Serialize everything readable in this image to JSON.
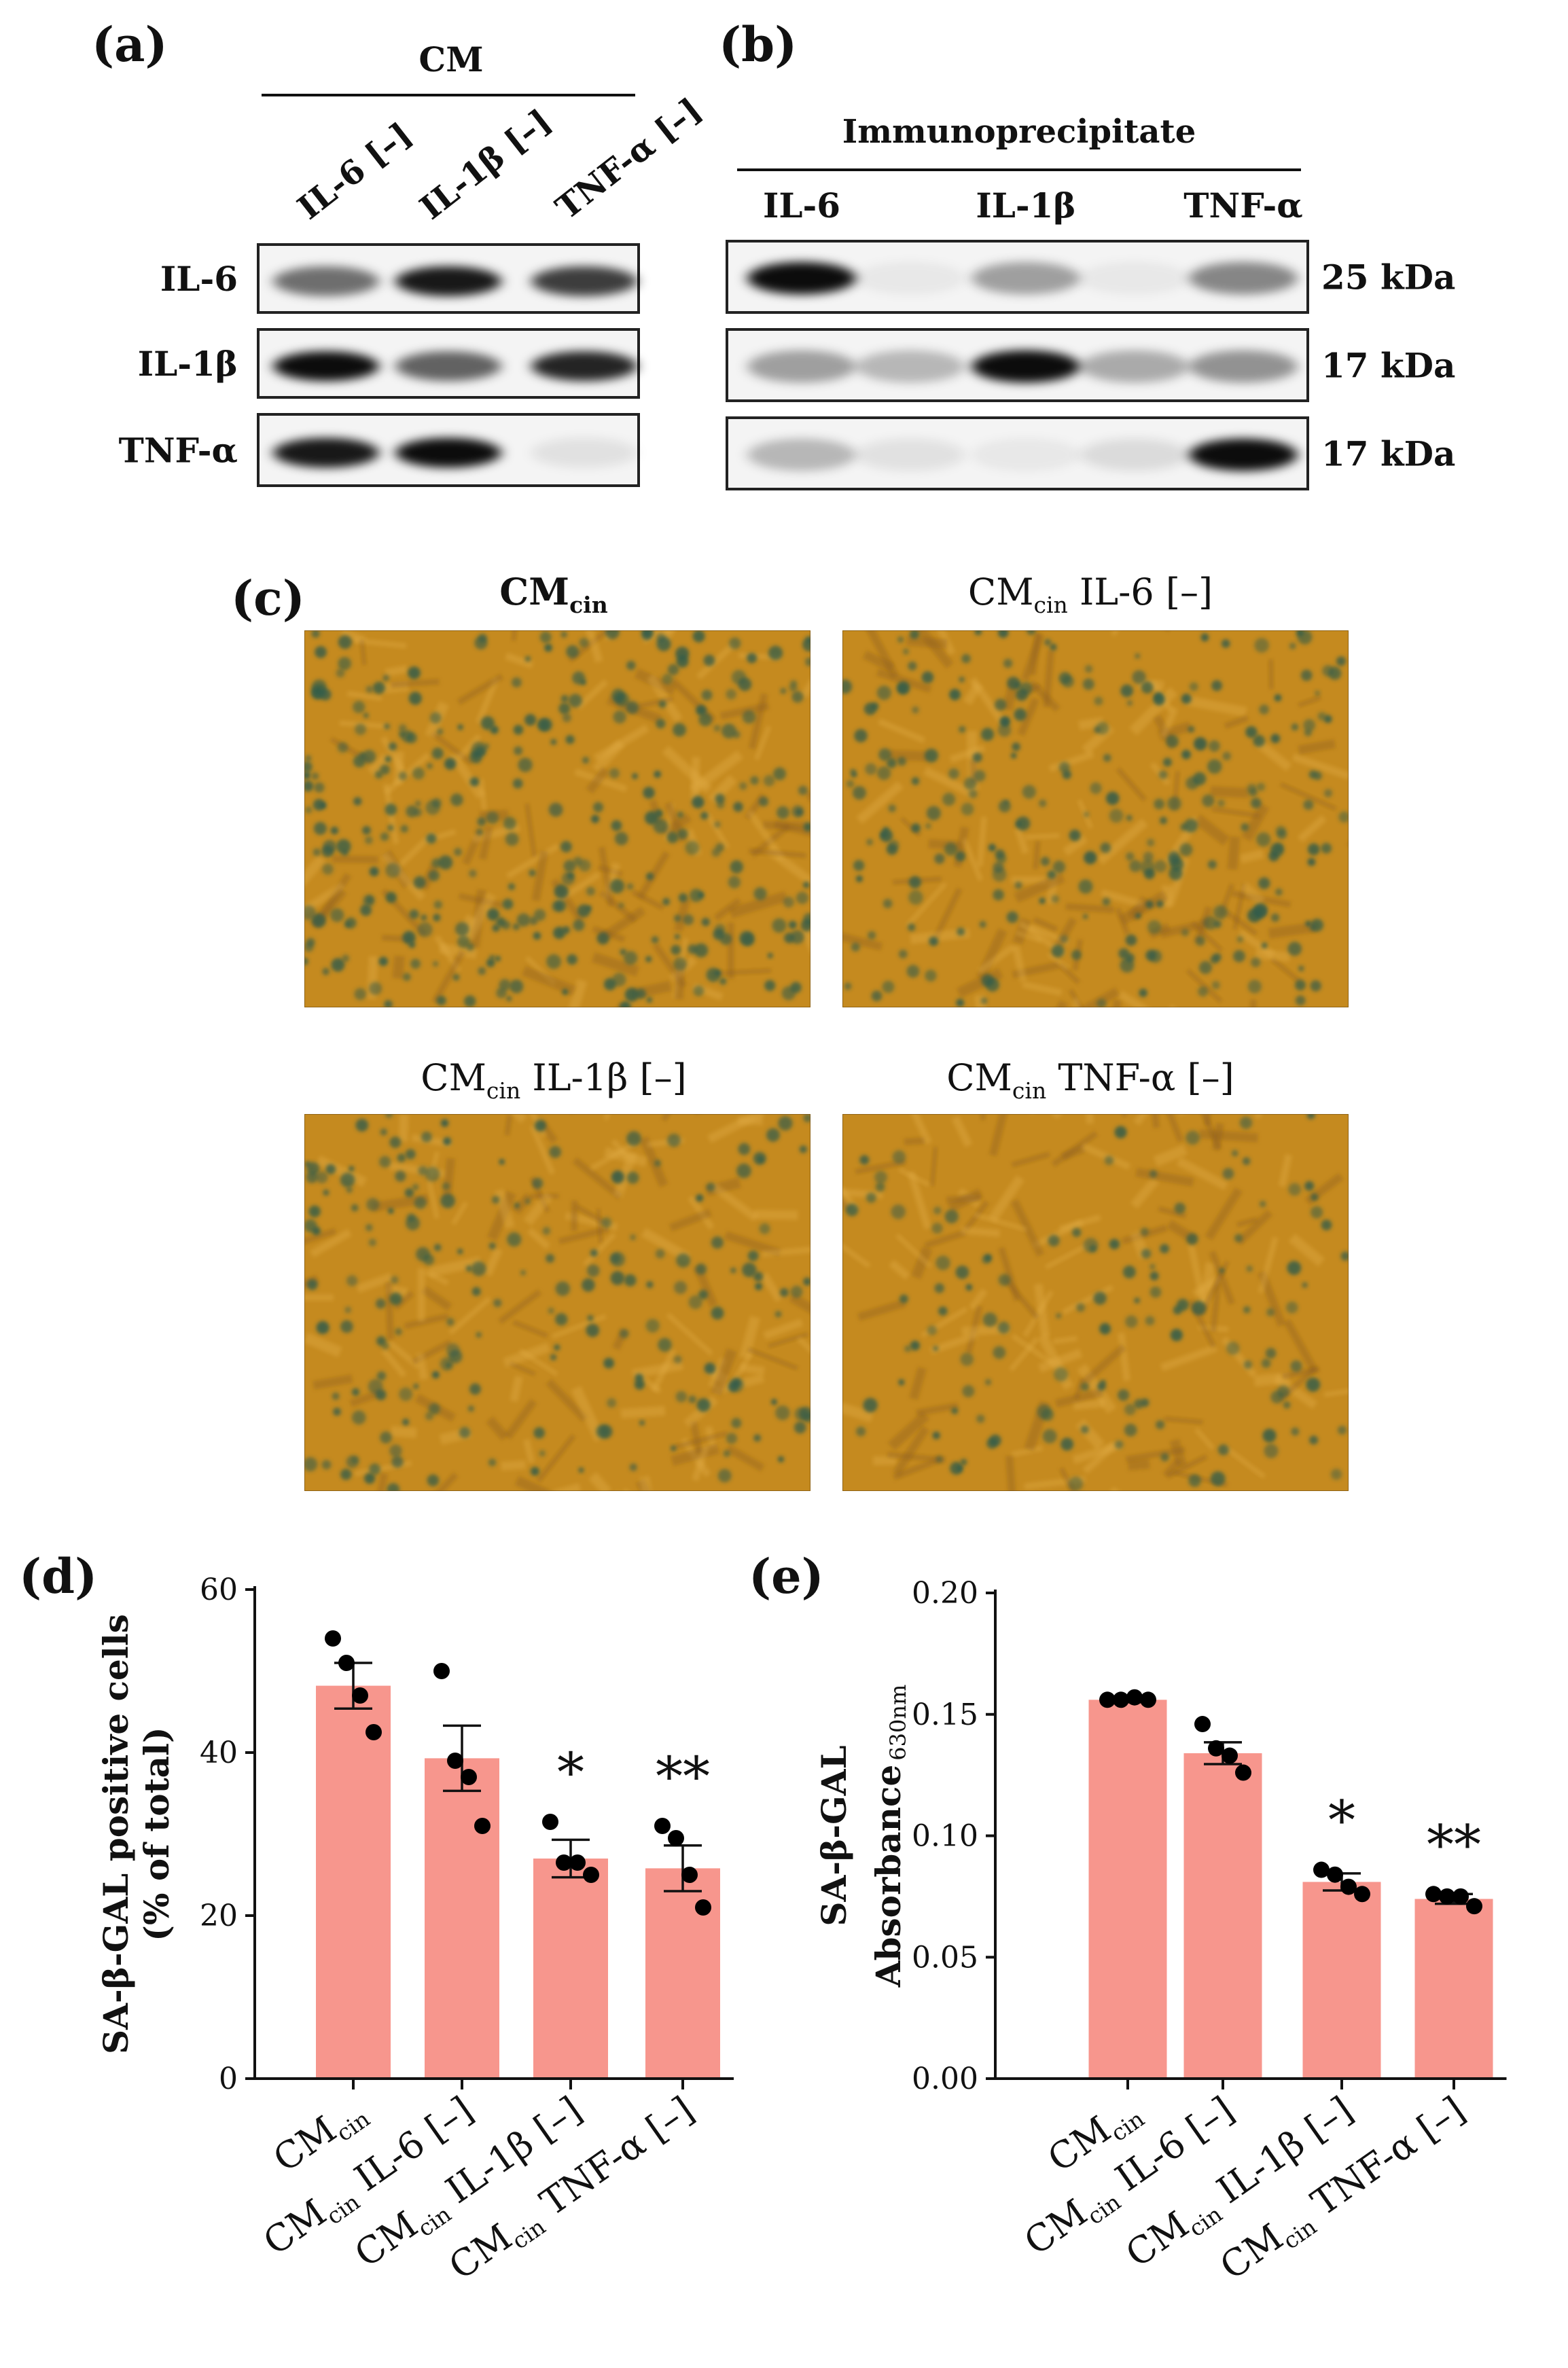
{
  "panel_letters": {
    "a": "(a)",
    "b": "(b)",
    "c": "(c)",
    "d": "(d)",
    "e": "(e)"
  },
  "panel_a": {
    "group_label": "CM",
    "lanes": [
      "IL-6 [–]",
      "IL-1β [–]",
      "TNF-α [–]"
    ],
    "blots": [
      {
        "label": "IL-6",
        "band_intensity": [
          0.55,
          0.9,
          0.75
        ]
      },
      {
        "label": "IL-1β",
        "band_intensity": [
          0.95,
          0.6,
          0.85
        ]
      },
      {
        "label": "TNF-α",
        "band_intensity": [
          0.9,
          0.95,
          0.08
        ]
      }
    ]
  },
  "panel_b": {
    "group_label": "Immunoprecipitate",
    "lanes": [
      "IL-6",
      "IL-1β",
      "TNF-α"
    ],
    "blots": [
      {
        "size": "25 kDa",
        "band_intensity": [
          0.95,
          0.05,
          0.35,
          0.05,
          0.45
        ]
      },
      {
        "size": "17 kDa",
        "band_intensity": [
          0.35,
          0.25,
          0.95,
          0.3,
          0.4
        ]
      },
      {
        "size": "17 kDa",
        "band_intensity": [
          0.25,
          0.08,
          0.05,
          0.1,
          0.95
        ]
      }
    ]
  },
  "panel_c": {
    "images": [
      {
        "main": "CM",
        "sub": "cin",
        "rest": ""
      },
      {
        "main": "CM",
        "sub": "cin",
        "rest": " IL-6 [–]"
      },
      {
        "main": "CM",
        "sub": "cin",
        "rest": " IL-1β [–]"
      },
      {
        "main": "CM",
        "sub": "cin",
        "rest": " TNF-α [–]"
      }
    ],
    "stain_density": [
      0.75,
      0.6,
      0.45,
      0.3
    ],
    "colors": {
      "background": "#c58a1f",
      "stain": "#2f5b4a"
    }
  },
  "category_labels": [
    {
      "main": "CM",
      "sub": "cin",
      "rest": ""
    },
    {
      "main": "CM",
      "sub": "cin",
      "rest": " IL-6 [–]"
    },
    {
      "main": "CM",
      "sub": "cin",
      "rest": " IL-1β [–]"
    },
    {
      "main": "CM",
      "sub": "cin",
      "rest": " TNF-α [–]"
    }
  ],
  "colors": {
    "bar": "#f7968d",
    "point": "#000000",
    "significance": "#e8261b"
  },
  "chart_data": [
    {
      "type": "bar",
      "panel": "d",
      "categories": [
        "CMcin",
        "CMcin IL-6 [–]",
        "CMcin IL-1β [–]",
        "CMcin TNF-α [–]"
      ],
      "values": [
        48.2,
        39.3,
        27.0,
        25.8
      ],
      "sem": [
        2.8,
        4.0,
        2.3,
        2.8
      ],
      "points": [
        [
          54,
          51,
          47,
          42.5
        ],
        [
          50,
          39,
          37,
          31
        ],
        [
          31.5,
          26.5,
          26.5,
          25
        ],
        [
          31,
          29.5,
          25,
          21
        ]
      ],
      "significance": [
        "",
        "",
        "*",
        "**"
      ],
      "ylabel_lines": [
        "SA-β-GAL positive cells",
        "(% of total)"
      ],
      "ylim": [
        0,
        60
      ],
      "yticks": [
        "0",
        "20",
        "40",
        "60"
      ],
      "ytick_values": [
        0,
        20,
        40,
        60
      ]
    },
    {
      "type": "bar",
      "panel": "e",
      "categories": [
        "CMcin",
        "CMcin IL-6 [–]",
        "CMcin IL-1β [–]",
        "CMcin TNF-α [–]"
      ],
      "values": [
        0.156,
        0.134,
        0.081,
        0.074
      ],
      "sem": [
        0.001,
        0.0045,
        0.0035,
        0.002
      ],
      "points": [
        [
          0.156,
          0.156,
          0.157,
          0.156
        ],
        [
          0.146,
          0.136,
          0.133,
          0.126
        ],
        [
          0.086,
          0.084,
          0.079,
          0.076
        ],
        [
          0.076,
          0.075,
          0.075,
          0.071
        ]
      ],
      "significance": [
        "",
        "",
        "*",
        "**"
      ],
      "ylabel_lines": [
        "SA-β-GAL",
        "Absorbance"
      ],
      "ylabel_sub": "630nm",
      "ylim": [
        0,
        0.2
      ],
      "yticks": [
        "0.00",
        "0.05",
        "0.10",
        "0.15",
        "0.20"
      ],
      "ytick_values": [
        0,
        0.05,
        0.1,
        0.15,
        0.2
      ]
    }
  ]
}
